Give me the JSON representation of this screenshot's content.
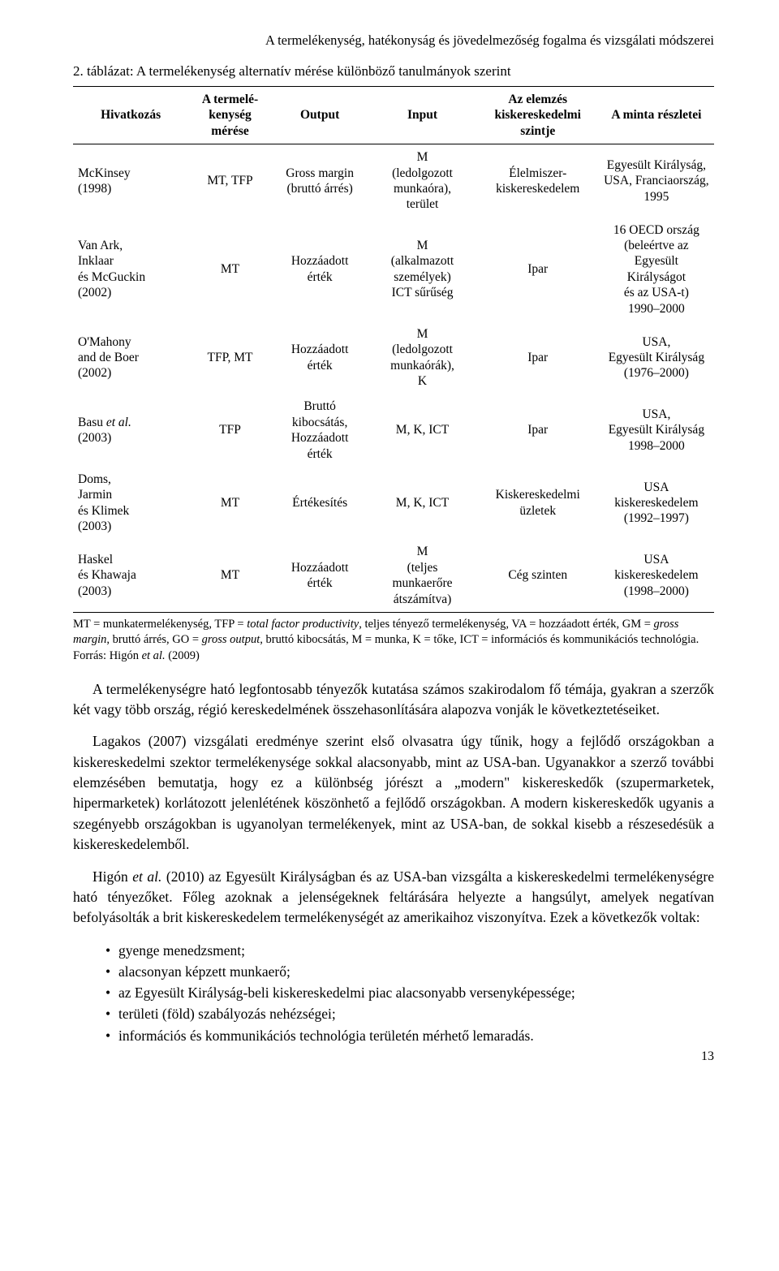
{
  "running_head": "A termelékenység, hatékonyság és jövedelmezőség fogalma és vizsgálati módszerei",
  "table_caption": "2. táblázat: A termelékenység alternatív mérése különböző tanulmányok szerint",
  "colwidths_pct": [
    18,
    13,
    15,
    17,
    19,
    18
  ],
  "head": {
    "c1": "Hivatkozás",
    "c2": "A termelé-\nkenység\nmérése",
    "c3": "Output",
    "c4": "Input",
    "c5": "Az elemzés\nkiskereskedelmi\nszintje",
    "c6": "A minta részletei"
  },
  "rows": [
    {
      "c1": "McKinsey\n(1998)",
      "c2": "MT, TFP",
      "c3": "Gross margin\n(bruttó árrés)",
      "c4": "M\n(ledolgozott\nmunkaóra),\nterület",
      "c5": "Élelmiszer-\nkiskereskedelem",
      "c6": "Egyesült Királyság,\nUSA, Franciaország,\n1995"
    },
    {
      "c1": "Van Ark,\nInklaar\nés McGuckin\n(2002)",
      "c2": "MT",
      "c3": "Hozzáadott\nérték",
      "c4": "M\n(alkalmazott\nszemélyek)\nICT sűrűség",
      "c5": "Ipar",
      "c6": "16 OECD ország\n(beleértve az\nEgyesült Királyságot\nés az USA-t)\n1990–2000"
    },
    {
      "c1": "O'Mahony\nand de Boer\n(2002)",
      "c2": "TFP, MT",
      "c3": "Hozzáadott\nérték",
      "c4": "M\n(ledolgozott\nmunkaórák),\nK",
      "c5": "Ipar",
      "c6": "USA,\nEgyesült Királyság\n(1976–2000)"
    },
    {
      "c1": "Basu et al.\n(2003)",
      "it1": true,
      "c2": "TFP",
      "c3": "Bruttó\nkibocsátás,\nHozzáadott\nérték",
      "c4": "M, K, ICT",
      "c5": "Ipar",
      "c6": "USA,\nEgyesült Királyság\n1998–2000"
    },
    {
      "c1": "Doms,\nJarmin\nés Klimek\n(2003)",
      "c2": "MT",
      "c3": "Értékesítés",
      "c4": "M, K, ICT",
      "c5": "Kiskereskedelmi\nüzletek",
      "c6": "USA\nkiskereskedelem\n(1992–1997)"
    },
    {
      "c1": "Haskel\nés Khawaja\n(2003)",
      "c2": "MT",
      "c3": "Hozzáadott\nérték",
      "c4": "M\n(teljes\nmunkaerőre\nátszámítva)",
      "c5": "Cég szinten",
      "c6": "USA\nkiskereskedelem\n(1998–2000)"
    }
  ],
  "footnote_parts": {
    "p1": "MT = munkatermelékenység, TFP = ",
    "i1": "total factor productivity",
    "p2": ", teljes tényező termelékenység, VA = hozzáadott érték, GM = ",
    "i2": "gross margin",
    "p3": ", bruttó árrés, GO = ",
    "i3": "gross output",
    "p4": ", bruttó kibocsátás, M = munka, K = tőke, ICT = információs és kommunikációs technológia.",
    "src_label": "Forrás: Higón ",
    "src_it": "et al.",
    "src_tail": " (2009)"
  },
  "para1": "A termelékenységre ható legfontosabb tényezők kutatása számos szakirodalom fő témája, gyakran a szerzők két vagy több ország, régió kereskedelmének összehasonlítására alapozva vonják le következtetéseiket.",
  "para2": "Lagakos (2007) vizsgálati eredménye szerint első olvasatra úgy tűnik, hogy a fejlődő országokban a kiskereskedelmi szektor termelékenysége sokkal alacsonyabb, mint az USA-ban. Ugyanakkor a szerző további elemzésében bemutatja, hogy ez a különbség jórészt a „modern\" kiskereskedők (szupermarketek, hipermarketek) korlátozott jelenlétének köszönhető a fejlődő országokban. A modern kiskereskedők ugyanis a szegényebb országokban is ugyanolyan termelékenyek, mint az USA-ban, de sokkal kisebb a részesedésük a kiskereskedelemből.",
  "para3_a": "Higón ",
  "para3_it": "et al.",
  "para3_b": " (2010) az Egyesült Királyságban és az USA-ban vizsgálta a kiskereskedelmi termelékenységre ható tényezőket. Főleg azoknak a jelenségeknek feltárására helyezte a hangsúlyt, amelyek negatívan befolyásolták a brit kiskereskedelem termelékenységét az amerikaihoz viszonyítva. Ezek a következők voltak:",
  "bullets": [
    "gyenge menedzsment;",
    "alacsonyan képzett munkaerő;",
    "az Egyesült Királyság-beli kiskereskedelmi piac alacsonyabb versenyképessége;",
    "területi (föld) szabályozás nehézségei;",
    "információs és kommunikációs technológia területén mérhető lemaradás."
  ],
  "page_number": "13"
}
